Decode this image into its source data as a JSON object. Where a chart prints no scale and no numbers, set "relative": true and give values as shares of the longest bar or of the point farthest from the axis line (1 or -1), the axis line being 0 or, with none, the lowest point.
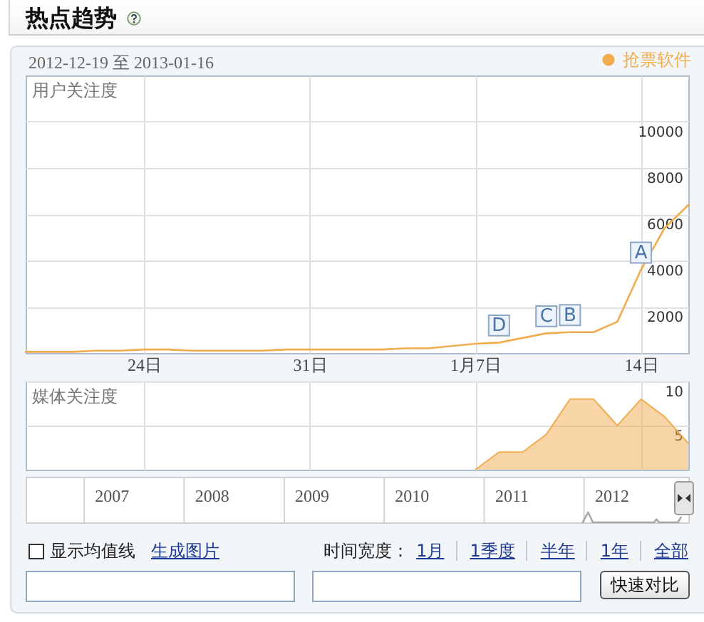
{
  "chart_data": [
    {
      "type": "line",
      "title": "热点趋势",
      "subtitle": "2012-12-19 至 2013-01-16",
      "ylabel": "用户关注度",
      "x": [
        "2012-12-19",
        "2012-12-20",
        "2012-12-21",
        "2012-12-22",
        "2012-12-23",
        "2012-12-24",
        "2012-12-25",
        "2012-12-26",
        "2012-12-27",
        "2012-12-28",
        "2012-12-29",
        "2012-12-30",
        "2012-12-31",
        "2013-01-01",
        "2013-01-02",
        "2013-01-03",
        "2013-01-04",
        "2013-01-05",
        "2013-01-06",
        "2013-01-07",
        "2013-01-08",
        "2013-01-09",
        "2013-01-10",
        "2013-01-11",
        "2013-01-12",
        "2013-01-13",
        "2013-01-14",
        "2013-01-15",
        "2013-01-16"
      ],
      "series": [
        {
          "name": "抢票软件",
          "color": "#f2ac50",
          "values": [
            50,
            50,
            50,
            100,
            100,
            150,
            150,
            100,
            100,
            100,
            100,
            150,
            150,
            150,
            150,
            150,
            200,
            200,
            300,
            400,
            450,
            650,
            850,
            900,
            900,
            1350,
            3600,
            5400,
            6400
          ]
        }
      ],
      "xlim": [
        "2012-12-19",
        "2013-01-16"
      ],
      "xticks": [
        {
          "value": "2012-12-24",
          "label": "24日"
        },
        {
          "value": "2012-12-31",
          "label": "31日"
        },
        {
          "value": "2013-01-07",
          "label": "1月7日"
        },
        {
          "value": "2013-01-14",
          "label": "14日"
        }
      ],
      "ylim": [
        0,
        12000
      ],
      "yticks": [
        2000,
        4000,
        6000,
        8000,
        10000
      ],
      "grid": true,
      "legend": "top right",
      "annotations": [
        {
          "text": "D",
          "x": "2013-01-08",
          "y": 450
        },
        {
          "text": "C",
          "x": "2013-01-10",
          "y": 850
        },
        {
          "text": "B",
          "x": "2013-01-11",
          "y": 900
        },
        {
          "text": "A",
          "x": "2013-01-14",
          "y": 3600
        }
      ]
    },
    {
      "type": "area",
      "ylabel": "媒体关注度",
      "x": [
        "2013-01-07",
        "2013-01-08",
        "2013-01-09",
        "2013-01-10",
        "2013-01-11",
        "2013-01-12",
        "2013-01-13",
        "2013-01-14",
        "2013-01-15",
        "2013-01-16"
      ],
      "series": [
        {
          "color": "#f2ac50",
          "values": [
            0,
            2,
            2,
            4,
            8,
            8,
            5,
            8,
            6,
            3
          ]
        }
      ],
      "xlim": [
        "2012-12-19",
        "2013-01-16"
      ],
      "xticks": [
        {
          "value": "2012-12-24",
          "label": null
        },
        {
          "value": "2012-12-31",
          "label": null
        },
        {
          "value": "2013-01-07",
          "label": null
        },
        {
          "value": "2013-01-14",
          "label": null
        }
      ],
      "ylim": [
        0,
        10
      ],
      "yticks": [
        5,
        10
      ],
      "grid": true,
      "tick_labels": "y"
    },
    {
      "type": "line",
      "relative": true,
      "x": [
        "2011-12-27",
        "2012-01-16",
        "2012-02-02",
        "2012-09-13",
        "2012-09-21",
        "2012-10-01",
        "2012-12-09",
        "2012-12-20"
      ],
      "series": [
        {
          "color": "#a8a8a8",
          "values": [
            0,
            1,
            0,
            0,
            0.3,
            0,
            0,
            0.5
          ]
        }
      ],
      "xlim": [
        "2006-06-01",
        "2013-01-16"
      ],
      "xticks": [
        {
          "value": "2007-04-10",
          "label": "2007"
        },
        {
          "value": "2008-04-10",
          "label": "2008"
        },
        {
          "value": "2009-04-10",
          "label": "2009"
        },
        {
          "value": "2010-04-10",
          "label": "2010"
        },
        {
          "value": "2011-04-10",
          "label": "2011"
        },
        {
          "value": "2012-04-10",
          "label": "2012"
        }
      ],
      "ref_lines": [
        {
          "axis": "x",
          "value": "2007-01-01"
        },
        {
          "axis": "x",
          "value": "2008-01-01"
        },
        {
          "axis": "x",
          "value": "2009-01-01"
        },
        {
          "axis": "x",
          "value": "2010-01-01"
        },
        {
          "axis": "x",
          "value": "2011-01-01"
        },
        {
          "axis": "x",
          "value": "2012-01-01"
        }
      ]
    },
    {
      "type": "other",
      "annotations": [
        "显示均值线",
        "生成图片",
        "时间宽度：",
        "1月",
        "1季度",
        "半年",
        "1年",
        "全部",
        "快速对比"
      ]
    }
  ]
}
